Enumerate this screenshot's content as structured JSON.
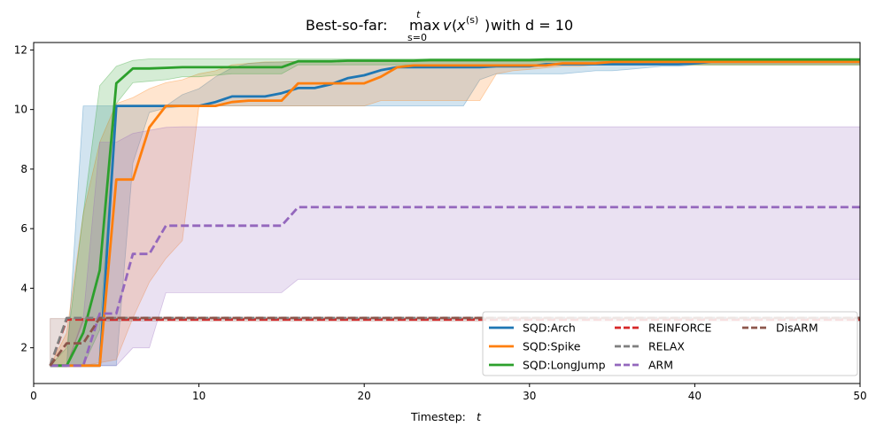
{
  "chart_data": {
    "type": "line",
    "title": "Best-so-far: max v(x(s)) with d = 10",
    "title_parts": {
      "prefix": "Best-so-far: ",
      "op": "max",
      "upper": "t",
      "lower": "s=0",
      "expr_v": "v",
      "expr_x": "x",
      "expr_sup": "(s)",
      "suffix": " with d = 10"
    },
    "xlabel": "Timestep: t",
    "xlabel_parts": {
      "text": "Timestep: ",
      "var": "t"
    },
    "ylabel": "",
    "xlim": [
      0,
      50
    ],
    "ylim": [
      0.8,
      12.25
    ],
    "xticks": [
      0,
      10,
      20,
      30,
      40,
      50
    ],
    "yticks": [
      2,
      4,
      6,
      8,
      10,
      12
    ],
    "grid": false,
    "legend_position": "lower-right",
    "legend_columns": 3,
    "x": [
      1,
      2,
      3,
      4,
      5,
      6,
      7,
      8,
      9,
      10,
      11,
      12,
      13,
      14,
      15,
      16,
      17,
      18,
      19,
      20,
      21,
      22,
      23,
      24,
      25,
      26,
      27,
      28,
      29,
      30,
      31,
      32,
      33,
      34,
      35,
      36,
      37,
      38,
      39,
      40,
      41,
      42,
      43,
      44,
      45,
      46,
      47,
      48,
      49,
      50
    ],
    "series": [
      {
        "name": "SQD:Arch",
        "color": "#1f77b4",
        "dash": "solid",
        "values": [
          1.4,
          1.4,
          1.4,
          1.4,
          10.12,
          10.12,
          10.12,
          10.12,
          10.12,
          10.12,
          10.25,
          10.44,
          10.44,
          10.44,
          10.55,
          10.72,
          10.72,
          10.85,
          11.05,
          11.15,
          11.32,
          11.42,
          11.42,
          11.42,
          11.42,
          11.42,
          11.42,
          11.45,
          11.45,
          11.45,
          11.52,
          11.52,
          11.52,
          11.52,
          11.52,
          11.52,
          11.52,
          11.52,
          11.52,
          11.55,
          11.6,
          11.6,
          11.6,
          11.6,
          11.6,
          11.6,
          11.6,
          11.6,
          11.6,
          11.6
        ],
        "upper": [
          1.4,
          1.4,
          10.12,
          10.12,
          10.12,
          10.12,
          10.12,
          10.12,
          10.5,
          10.7,
          11.1,
          11.4,
          11.55,
          11.58,
          11.6,
          11.62,
          11.62,
          11.62,
          11.62,
          11.62,
          11.62,
          11.62,
          11.62,
          11.62,
          11.62,
          11.62,
          11.62,
          11.62,
          11.62,
          11.62,
          11.62,
          11.62,
          11.62,
          11.62,
          11.62,
          11.62,
          11.62,
          11.62,
          11.62,
          11.62,
          11.62,
          11.62,
          11.62,
          11.62,
          11.62,
          11.62,
          11.62,
          11.62,
          11.62,
          11.62
        ],
        "lower": [
          1.4,
          1.4,
          1.4,
          1.4,
          1.4,
          8.2,
          9.9,
          10.05,
          10.1,
          10.1,
          10.12,
          10.12,
          10.12,
          10.12,
          10.12,
          10.12,
          10.12,
          10.12,
          10.12,
          10.12,
          10.12,
          10.12,
          10.12,
          10.12,
          10.12,
          10.12,
          11.0,
          11.2,
          11.2,
          11.2,
          11.2,
          11.2,
          11.25,
          11.3,
          11.3,
          11.35,
          11.4,
          11.45,
          11.45,
          11.5,
          11.5,
          11.5,
          11.5,
          11.5,
          11.5,
          11.5,
          11.5,
          11.5,
          11.5,
          11.5
        ]
      },
      {
        "name": "SQD:Spike",
        "color": "#ff7f0e",
        "dash": "solid",
        "values": [
          1.4,
          1.4,
          1.4,
          1.4,
          7.65,
          7.65,
          9.4,
          10.12,
          10.12,
          10.12,
          10.12,
          10.25,
          10.3,
          10.3,
          10.3,
          10.88,
          10.88,
          10.88,
          10.88,
          10.88,
          11.1,
          11.42,
          11.48,
          11.48,
          11.48,
          11.48,
          11.48,
          11.48,
          11.48,
          11.48,
          11.48,
          11.55,
          11.55,
          11.55,
          11.6,
          11.6,
          11.6,
          11.6,
          11.6,
          11.6,
          11.6,
          11.6,
          11.6,
          11.6,
          11.6,
          11.6,
          11.6,
          11.6,
          11.6,
          11.6
        ],
        "upper": [
          1.4,
          2.5,
          6.5,
          8.9,
          10.2,
          10.4,
          10.7,
          10.9,
          11.0,
          11.2,
          11.3,
          11.5,
          11.55,
          11.6,
          11.6,
          11.62,
          11.62,
          11.62,
          11.62,
          11.62,
          11.62,
          11.62,
          11.62,
          11.62,
          11.62,
          11.62,
          11.62,
          11.62,
          11.62,
          11.62,
          11.62,
          11.62,
          11.62,
          11.62,
          11.62,
          11.62,
          11.62,
          11.62,
          11.62,
          11.62,
          11.62,
          11.62,
          11.62,
          11.62,
          11.62,
          11.62,
          11.62,
          11.62,
          11.62,
          11.62
        ],
        "lower": [
          1.4,
          1.4,
          1.4,
          1.5,
          1.6,
          3.0,
          4.2,
          5.0,
          5.6,
          10.12,
          10.12,
          10.12,
          10.12,
          10.12,
          10.12,
          10.12,
          10.12,
          10.12,
          10.12,
          10.12,
          10.3,
          10.3,
          10.3,
          10.3,
          10.3,
          10.3,
          10.3,
          11.2,
          11.3,
          11.35,
          11.4,
          11.45,
          11.45,
          11.5,
          11.5,
          11.5,
          11.5,
          11.5,
          11.5,
          11.5,
          11.5,
          11.5,
          11.5,
          11.5,
          11.5,
          11.5,
          11.5,
          11.5,
          11.5,
          11.5
        ]
      },
      {
        "name": "SQD:LongJump",
        "color": "#2ca02c",
        "dash": "solid",
        "values": [
          1.4,
          1.4,
          2.5,
          4.6,
          10.88,
          11.38,
          11.38,
          11.4,
          11.42,
          11.42,
          11.42,
          11.42,
          11.42,
          11.42,
          11.42,
          11.62,
          11.62,
          11.62,
          11.64,
          11.64,
          11.64,
          11.64,
          11.64,
          11.66,
          11.66,
          11.66,
          11.66,
          11.66,
          11.66,
          11.66,
          11.68,
          11.68,
          11.68,
          11.68,
          11.68,
          11.68,
          11.68,
          11.68,
          11.68,
          11.68,
          11.68,
          11.68,
          11.68,
          11.68,
          11.68,
          11.68,
          11.68,
          11.68,
          11.68,
          11.68
        ],
        "upper": [
          1.4,
          2.0,
          6.5,
          10.8,
          11.45,
          11.65,
          11.7,
          11.7,
          11.7,
          11.7,
          11.7,
          11.7,
          11.7,
          11.7,
          11.7,
          11.7,
          11.7,
          11.7,
          11.7,
          11.7,
          11.7,
          11.7,
          11.7,
          11.7,
          11.7,
          11.7,
          11.7,
          11.7,
          11.7,
          11.7,
          11.7,
          11.7,
          11.7,
          11.7,
          11.7,
          11.7,
          11.7,
          11.7,
          11.7,
          11.7,
          11.7,
          11.7,
          11.7,
          11.7,
          11.7,
          11.7,
          11.7,
          11.7,
          11.7,
          11.7
        ],
        "lower": [
          1.4,
          1.4,
          1.4,
          2.6,
          10.2,
          10.9,
          10.95,
          11.0,
          11.1,
          11.1,
          11.15,
          11.2,
          11.2,
          11.2,
          11.2,
          11.5,
          11.5,
          11.5,
          11.5,
          11.5,
          11.5,
          11.5,
          11.5,
          11.5,
          11.5,
          11.5,
          11.5,
          11.5,
          11.5,
          11.5,
          11.5,
          11.5,
          11.5,
          11.5,
          11.5,
          11.5,
          11.5,
          11.5,
          11.5,
          11.5,
          11.5,
          11.5,
          11.5,
          11.5,
          11.5,
          11.5,
          11.5,
          11.5,
          11.5,
          11.5
        ]
      },
      {
        "name": "REINFORCE",
        "color": "#d62728",
        "dash": "dashed",
        "values": [
          1.4,
          2.95,
          2.95,
          2.95,
          2.95,
          2.95,
          2.95,
          2.95,
          2.95,
          2.95,
          2.95,
          2.95,
          2.95,
          2.95,
          2.95,
          2.95,
          2.95,
          2.95,
          2.95,
          2.95,
          2.95,
          2.95,
          2.95,
          2.95,
          2.95,
          2.95,
          2.95,
          2.95,
          2.95,
          2.95,
          2.95,
          2.95,
          2.95,
          2.95,
          2.95,
          2.95,
          2.95,
          2.95,
          2.95,
          2.95,
          2.95,
          2.95,
          2.95,
          2.95,
          2.95,
          2.95,
          2.95,
          2.95,
          2.95,
          2.95
        ]
      },
      {
        "name": "RELAX",
        "color": "#7f7f7f",
        "dash": "dashed",
        "values": [
          1.4,
          3.0,
          3.0,
          3.0,
          3.0,
          3.0,
          3.0,
          3.0,
          3.0,
          3.0,
          3.0,
          3.0,
          3.0,
          3.0,
          3.0,
          3.0,
          3.0,
          3.0,
          3.0,
          3.0,
          3.0,
          3.0,
          3.0,
          3.0,
          3.0,
          3.0,
          3.0,
          3.0,
          3.0,
          3.0,
          3.0,
          3.0,
          3.0,
          3.0,
          3.0,
          3.0,
          3.0,
          3.0,
          3.0,
          3.0,
          3.0,
          3.0,
          3.0,
          3.0,
          3.0,
          3.0,
          3.0,
          3.0,
          3.0,
          3.0
        ]
      },
      {
        "name": "ARM",
        "color": "#9467bd",
        "dash": "dashed",
        "values": [
          1.4,
          1.4,
          1.4,
          3.15,
          3.15,
          5.15,
          5.15,
          6.1,
          6.1,
          6.1,
          6.1,
          6.1,
          6.1,
          6.1,
          6.1,
          6.72,
          6.72,
          6.72,
          6.72,
          6.72,
          6.72,
          6.72,
          6.72,
          6.72,
          6.72,
          6.72,
          6.72,
          6.72,
          6.72,
          6.72,
          6.72,
          6.72,
          6.72,
          6.72,
          6.72,
          6.72,
          6.72,
          6.72,
          6.72,
          6.72,
          6.72,
          6.72,
          6.72,
          6.72,
          6.72,
          6.72,
          6.72,
          6.72,
          6.72,
          6.72
        ],
        "upper": [
          1.4,
          1.4,
          3.0,
          8.9,
          8.9,
          9.2,
          9.3,
          9.4,
          9.42,
          9.42,
          9.42,
          9.42,
          9.42,
          9.42,
          9.42,
          9.42,
          9.42,
          9.42,
          9.42,
          9.42,
          9.42,
          9.42,
          9.42,
          9.42,
          9.42,
          9.42,
          9.42,
          9.42,
          9.42,
          9.42,
          9.42,
          9.42,
          9.42,
          9.42,
          9.42,
          9.42,
          9.42,
          9.42,
          9.42,
          9.42,
          9.42,
          9.42,
          9.42,
          9.42,
          9.42,
          9.42,
          9.42,
          9.42,
          9.42,
          9.42
        ],
        "lower": [
          1.4,
          1.4,
          1.4,
          1.4,
          1.4,
          2.0,
          2.0,
          3.85,
          3.85,
          3.85,
          3.85,
          3.85,
          3.85,
          3.85,
          3.85,
          4.3,
          4.3,
          4.3,
          4.3,
          4.3,
          4.3,
          4.3,
          4.3,
          4.3,
          4.3,
          4.3,
          4.3,
          4.3,
          4.3,
          4.3,
          4.3,
          4.3,
          4.3,
          4.3,
          4.3,
          4.3,
          4.3,
          4.3,
          4.3,
          4.3,
          4.3,
          4.3,
          4.3,
          4.3,
          4.3,
          4.3,
          4.3,
          4.3,
          4.3,
          4.3
        ]
      },
      {
        "name": "DisARM",
        "color": "#8c564b",
        "dash": "dashed",
        "values": [
          1.4,
          2.15,
          2.15,
          3.0,
          3.0,
          3.0,
          3.0,
          3.0,
          3.0,
          3.0,
          3.0,
          3.0,
          3.0,
          3.0,
          3.0,
          3.0,
          3.0,
          3.0,
          3.0,
          3.0,
          3.0,
          3.0,
          3.0,
          3.0,
          3.0,
          3.0,
          3.0,
          3.0,
          3.0,
          3.0,
          3.0,
          3.0,
          3.0,
          3.0,
          3.0,
          3.0,
          3.0,
          3.0,
          3.0,
          3.0,
          3.0,
          3.0,
          3.0,
          3.0,
          3.0,
          3.0,
          3.0,
          3.0,
          3.0,
          3.0
        ],
        "upper": [
          2.98,
          2.98,
          2.98,
          2.98,
          2.98,
          2.98,
          2.98,
          2.98,
          2.98,
          2.98,
          2.98,
          2.98,
          2.98,
          2.98,
          2.98,
          2.98,
          2.98,
          2.98,
          2.98,
          2.98,
          2.98,
          2.98,
          2.98,
          2.98,
          2.98,
          2.98,
          2.98,
          2.98,
          2.98,
          2.98,
          2.98,
          2.98,
          2.98,
          2.98,
          2.98,
          2.98,
          2.98,
          2.98,
          2.98,
          2.98,
          2.98,
          2.98,
          2.98,
          2.98,
          2.98,
          2.98,
          2.98,
          2.98,
          2.98,
          2.98
        ],
        "lower": [
          1.4,
          1.4,
          2.9,
          2.9,
          2.9,
          2.9,
          2.9,
          2.9,
          2.9,
          2.9,
          2.9,
          2.9,
          2.9,
          2.9,
          2.9,
          2.9,
          2.9,
          2.9,
          2.9,
          2.9,
          2.9,
          2.9,
          2.9,
          2.9,
          2.9,
          2.9,
          2.9,
          2.9,
          2.9,
          2.9,
          2.9,
          2.9,
          2.9,
          2.9,
          2.9,
          2.9,
          2.9,
          2.9,
          2.9,
          2.9,
          2.9,
          2.9,
          2.9,
          2.9,
          2.9,
          2.9,
          2.9,
          2.9,
          2.9,
          2.9
        ]
      }
    ]
  }
}
